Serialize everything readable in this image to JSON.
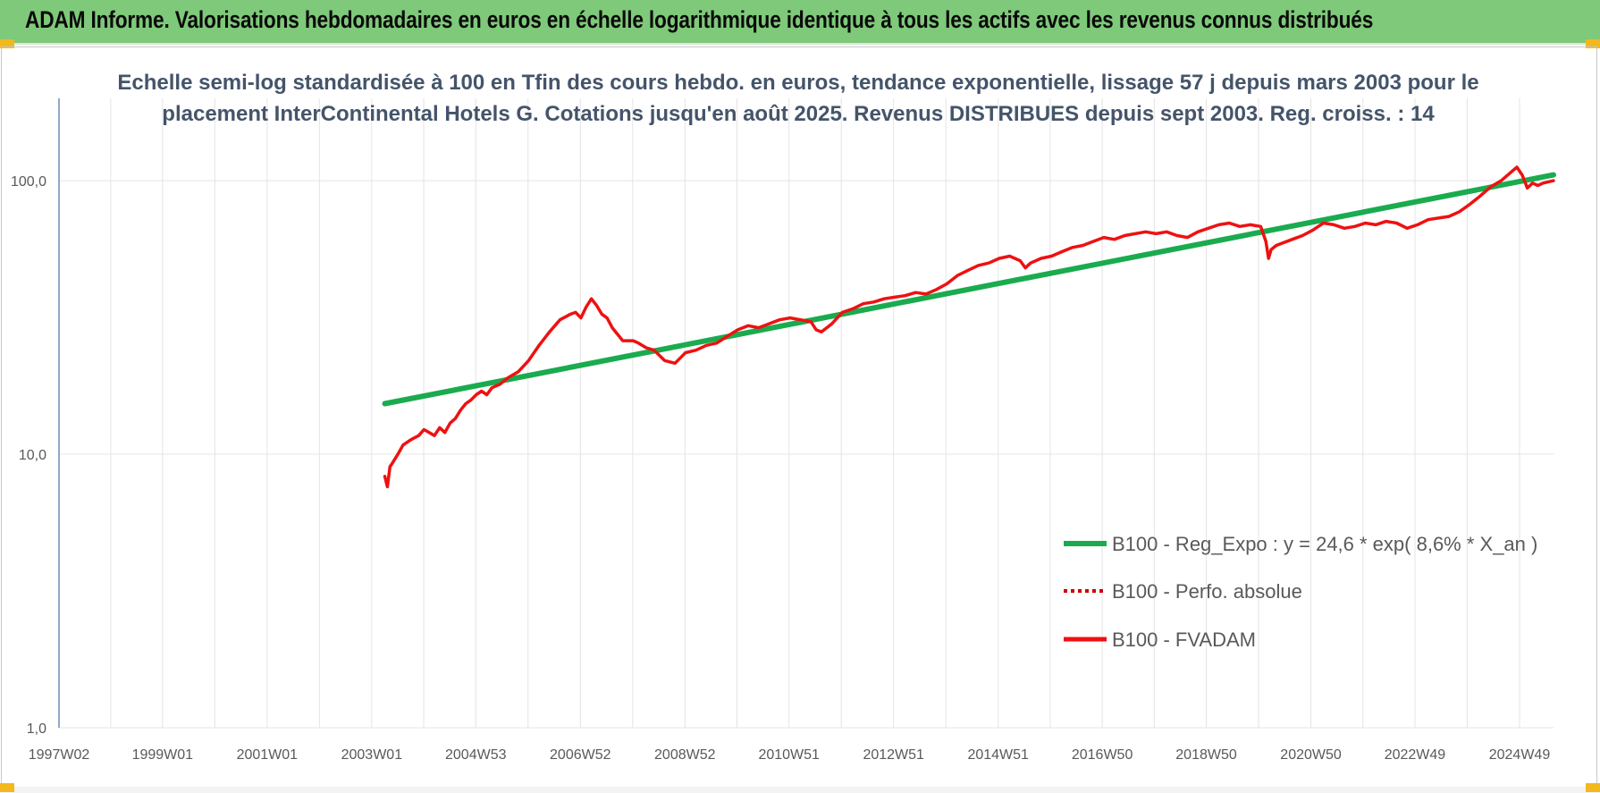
{
  "header": {
    "title": "ADAM Informe. Valorisations hebdomadaires en euros en échelle logarithmique identique à tous les actifs avec les revenus connus distribués"
  },
  "colors": {
    "header_bg": "#7fc97a",
    "corner": "#f2b81c",
    "trend": "#1aab4f",
    "fvadam": "#ee1111",
    "perfo": "#cc0000",
    "grid": "#e4e4e4"
  },
  "chart_data": {
    "type": "line",
    "title": "",
    "subtitle_lines": [
      "Echelle semi-log standardisée à 100 en Tfin des cours hebdo. en euros, tendance exponentielle, lissage 57 j depuis mars 2003 pour le",
      "placement InterContinental Hotels G. Cotations jusqu'en août 2025. Revenus DISTRIBUES depuis sept 2003. Reg. croiss. : 14"
    ],
    "xlabel": "",
    "ylabel": "",
    "y_scale": "log",
    "ylim": [
      1,
      200
    ],
    "xlim": [
      1997.02,
      2025.6
    ],
    "x_tick_labels": [
      "1997W02",
      "1999W01",
      "2001W01",
      "2003W01",
      "2004W53",
      "2006W52",
      "2008W52",
      "2010W51",
      "2012W51",
      "2014W51",
      "2016W50",
      "2018W50",
      "2020W50",
      "2022W49",
      "2024W49"
    ],
    "x_tick_years": [
      1997.02,
      1999.0,
      2001.0,
      2003.0,
      2004.99,
      2006.99,
      2008.99,
      2010.98,
      2012.98,
      2014.98,
      2016.97,
      2018.96,
      2020.96,
      2022.95,
      2024.95
    ],
    "y_ticks": [
      1,
      10,
      100
    ],
    "y_tick_labels": [
      "1,0",
      "10,0",
      "100,0"
    ],
    "grid": true,
    "legend_position": "bottom-right",
    "series": [
      {
        "name": "B100 - Reg_Expo : y = 24,6 * exp( 8,6% *  X_an )",
        "style": "solid-thick",
        "x": [
          2003.25,
          2025.6
        ],
        "y": [
          15.3,
          105
        ]
      },
      {
        "name": "B100 - Perfo. absolue",
        "style": "dotted",
        "x": [],
        "y": []
      },
      {
        "name": "B100 - FVADAM",
        "style": "solid",
        "x": [
          2003.25,
          2003.3,
          2003.35,
          2003.4,
          2003.5,
          2003.6,
          2003.75,
          2003.9,
          2004.0,
          2004.1,
          2004.2,
          2004.3,
          2004.4,
          2004.5,
          2004.6,
          2004.7,
          2004.8,
          2004.9,
          2005.0,
          2005.1,
          2005.2,
          2005.3,
          2005.45,
          2005.6,
          2005.8,
          2006.0,
          2006.2,
          2006.4,
          2006.6,
          2006.8,
          2006.9,
          2007.0,
          2007.1,
          2007.2,
          2007.3,
          2007.4,
          2007.5,
          2007.6,
          2007.8,
          2008.0,
          2008.1,
          2008.25,
          2008.4,
          2008.6,
          2008.8,
          2009.0,
          2009.2,
          2009.4,
          2009.6,
          2009.8,
          2010.0,
          2010.2,
          2010.4,
          2010.6,
          2010.8,
          2011.0,
          2011.2,
          2011.4,
          2011.5,
          2011.6,
          2011.8,
          2012.0,
          2012.2,
          2012.4,
          2012.6,
          2012.8,
          2013.0,
          2013.2,
          2013.4,
          2013.6,
          2013.8,
          2014.0,
          2014.2,
          2014.4,
          2014.6,
          2014.8,
          2015.0,
          2015.2,
          2015.4,
          2015.5,
          2015.6,
          2015.8,
          2016.0,
          2016.2,
          2016.4,
          2016.6,
          2016.8,
          2017.0,
          2017.2,
          2017.4,
          2017.6,
          2017.8,
          2018.0,
          2018.2,
          2018.4,
          2018.6,
          2018.8,
          2019.0,
          2019.2,
          2019.4,
          2019.6,
          2019.8,
          2020.0,
          2020.1,
          2020.15,
          2020.2,
          2020.3,
          2020.4,
          2020.6,
          2020.8,
          2021.0,
          2021.2,
          2021.4,
          2021.6,
          2021.8,
          2022.0,
          2022.2,
          2022.4,
          2022.6,
          2022.8,
          2023.0,
          2023.2,
          2023.4,
          2023.6,
          2023.8,
          2024.0,
          2024.2,
          2024.4,
          2024.6,
          2024.8,
          2024.9,
          2025.0,
          2025.1,
          2025.2,
          2025.3,
          2025.4,
          2025.5,
          2025.6
        ],
        "y": [
          8.3,
          7.6,
          9.0,
          9.3,
          10.0,
          10.8,
          11.3,
          11.7,
          12.3,
          12.0,
          11.7,
          12.5,
          12.0,
          13.0,
          13.5,
          14.5,
          15.3,
          15.8,
          16.5,
          17.0,
          16.5,
          17.5,
          18.0,
          19.0,
          20.0,
          22.0,
          25.0,
          28.0,
          31.0,
          32.5,
          33.0,
          31.5,
          34.5,
          37.0,
          35.0,
          32.5,
          31.5,
          29.0,
          26.0,
          26.0,
          25.5,
          24.5,
          24.0,
          22.0,
          21.5,
          23.5,
          24.0,
          25.0,
          25.5,
          27.0,
          28.5,
          29.5,
          29.0,
          30.0,
          31.0,
          31.5,
          31.0,
          30.5,
          28.5,
          28.0,
          30.0,
          33.0,
          34.0,
          35.5,
          36.0,
          37.0,
          37.5,
          38.0,
          39.0,
          38.5,
          40.0,
          42.0,
          45.0,
          47.0,
          49.0,
          50.0,
          52.0,
          53.0,
          51.0,
          48.0,
          50.0,
          52.0,
          53.0,
          55.0,
          57.0,
          58.0,
          60.0,
          62.0,
          61.0,
          63.0,
          64.0,
          65.0,
          64.0,
          65.0,
          63.0,
          62.0,
          65.0,
          67.0,
          69.0,
          70.0,
          68.0,
          69.0,
          68.0,
          60.0,
          52.0,
          56.0,
          58.0,
          59.0,
          61.0,
          63.0,
          66.0,
          70.0,
          69.0,
          67.0,
          68.0,
          70.0,
          69.0,
          71.0,
          70.0,
          67.0,
          69.0,
          72.0,
          73.0,
          74.0,
          77.0,
          82.0,
          88.0,
          95.0,
          100.0,
          108.0,
          112.0,
          105.0,
          94.0,
          98.0,
          96.0,
          98.0,
          99.0,
          100.0
        ]
      }
    ]
  },
  "legend": {
    "items": [
      {
        "label": "B100 - Reg_Expo : y = 24,6 * exp( 8,6% *  X_an )"
      },
      {
        "label": "B100 - Perfo. absolue"
      },
      {
        "label": "B100 - FVADAM"
      }
    ]
  }
}
